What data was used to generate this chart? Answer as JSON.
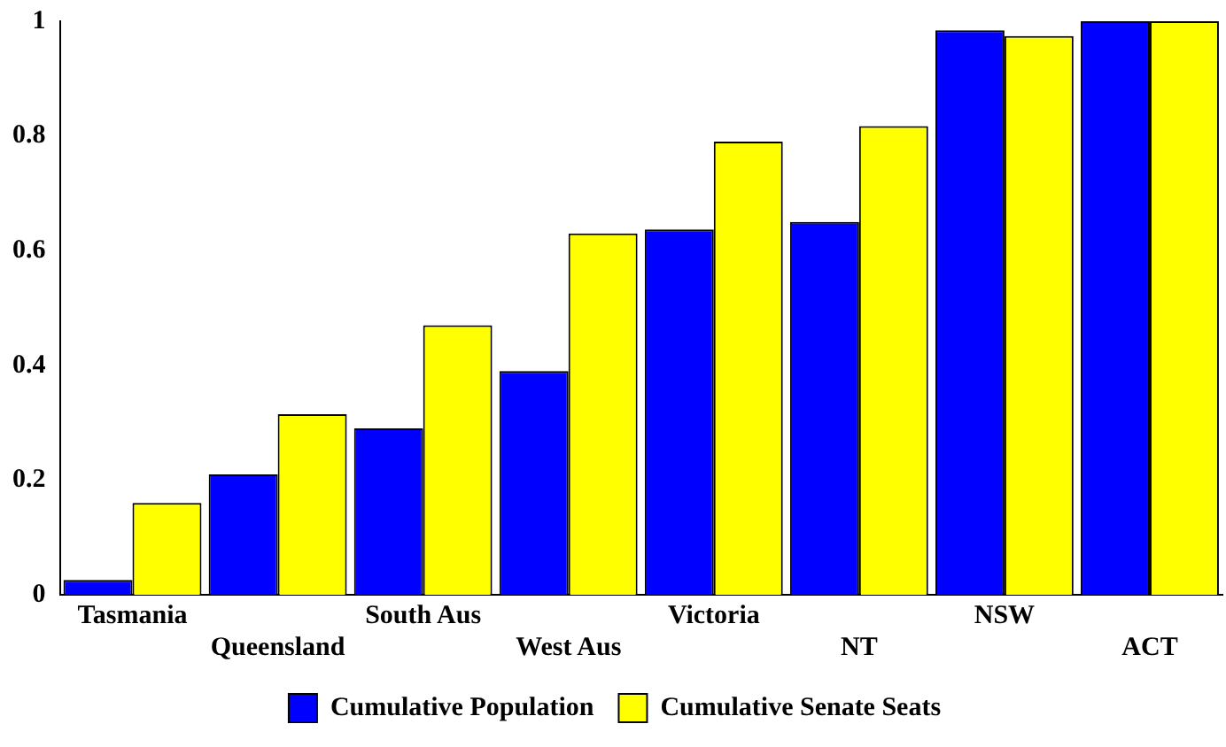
{
  "chart_data": {
    "type": "bar",
    "categories": [
      "Tasmania",
      "Queensland",
      "South Aus",
      "West Aus",
      "Victoria",
      "NT",
      "NSW",
      "ACT"
    ],
    "series": [
      {
        "name": "Cumulative Population",
        "color": "#0000ff",
        "values": [
          0.026,
          0.21,
          0.29,
          0.39,
          0.637,
          0.65,
          0.984,
          1
        ]
      },
      {
        "name": "Cumulative Senate Seats",
        "color": "#ffff00",
        "values": [
          0.16,
          0.315,
          0.47,
          0.63,
          0.79,
          0.817,
          0.974,
          1
        ]
      }
    ],
    "ylim": [
      0,
      1
    ],
    "yticks": [
      0,
      0.2,
      0.4,
      0.6,
      0.8,
      1
    ],
    "grid": false,
    "legend": "bottom"
  }
}
